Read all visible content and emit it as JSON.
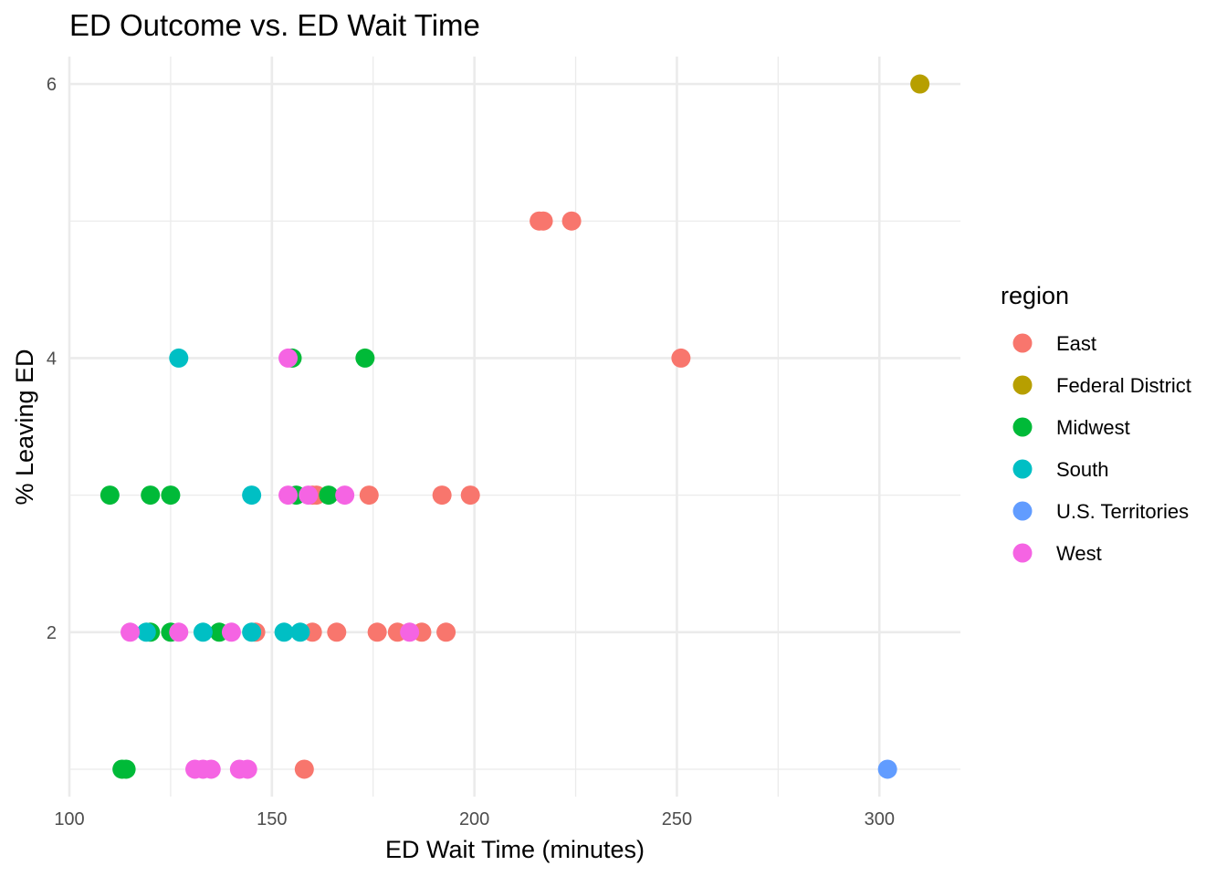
{
  "chart_data": {
    "type": "scatter",
    "title": "ED Outcome vs. ED Wait Time",
    "xlabel": "ED Wait Time (minutes)",
    "ylabel": "% Leaving ED",
    "xlim": [
      100,
      320
    ],
    "ylim": [
      0.8,
      6.2
    ],
    "x_ticks": [
      100,
      150,
      200,
      250,
      300
    ],
    "x_minor_ticks": [
      125,
      175,
      225,
      275
    ],
    "y_ticks": [
      2,
      4,
      6
    ],
    "y_minor_ticks": [
      1,
      3,
      5
    ],
    "grid": true,
    "legend": {
      "title": "region",
      "position": "right"
    },
    "series": [
      {
        "name": "East",
        "color": "#F8766D",
        "x": [
          216,
          217,
          224,
          251,
          160,
          161,
          174,
          192,
          199,
          146,
          160,
          166,
          176,
          181,
          187,
          193,
          158
        ],
        "y": [
          5,
          5,
          5,
          4,
          3,
          3,
          3,
          3,
          3,
          2,
          2,
          2,
          2,
          2,
          2,
          2,
          1
        ]
      },
      {
        "name": "Federal District",
        "color": "#B79F00",
        "x": [
          310
        ],
        "y": [
          6
        ]
      },
      {
        "name": "Midwest",
        "color": "#00BA38",
        "x": [
          155,
          173,
          110,
          120,
          125,
          156,
          164,
          120,
          125,
          137,
          113,
          114
        ],
        "y": [
          4,
          4,
          3,
          3,
          3,
          3,
          3,
          2,
          2,
          2,
          1,
          1
        ]
      },
      {
        "name": "South",
        "color": "#00BFC4",
        "x": [
          127,
          145,
          119,
          133,
          145,
          153,
          157
        ],
        "y": [
          4,
          3,
          2,
          2,
          2,
          2,
          2
        ]
      },
      {
        "name": "U.S. Territories",
        "color": "#619CFF",
        "x": [
          302
        ],
        "y": [
          1
        ]
      },
      {
        "name": "West",
        "color": "#F564E3",
        "x": [
          154,
          154,
          159,
          168,
          115,
          127,
          140,
          184,
          131,
          133,
          135,
          142,
          144
        ],
        "y": [
          4,
          3,
          3,
          3,
          2,
          2,
          2,
          2,
          1,
          1,
          1,
          1,
          1
        ]
      }
    ]
  }
}
